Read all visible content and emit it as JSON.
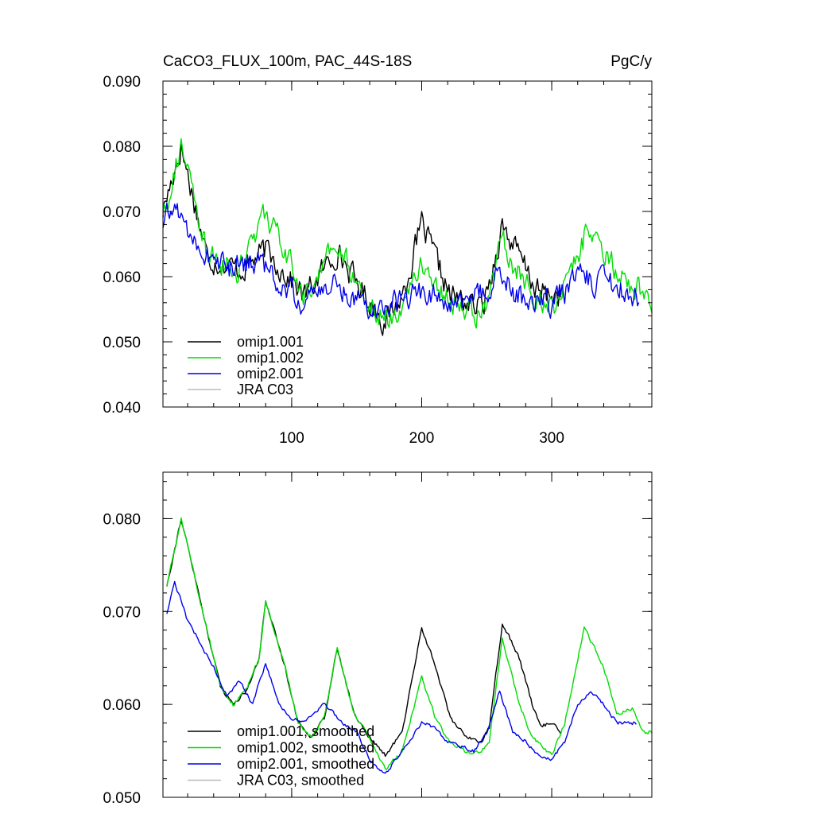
{
  "chart_data": [
    {
      "type": "line",
      "title": "CaCO3_FLUX_100m, PAC_44S-18S",
      "units": "PgC/y",
      "xlabel": "",
      "ylabel": "",
      "xlim": [
        1,
        377
      ],
      "ylim": [
        0.04,
        0.09
      ],
      "xticks": [
        100,
        200,
        300
      ],
      "xtick_labels": [
        "100",
        "200",
        "300"
      ],
      "yticks": [
        0.04,
        0.05,
        0.06,
        0.07,
        0.08,
        0.09
      ],
      "ytick_labels": [
        "0.040",
        "0.050",
        "0.060",
        "0.070",
        "0.080",
        "0.090"
      ],
      "legend_position": "bottom-left",
      "series": [
        {
          "name": "omip1.001",
          "color": "#000000",
          "x_start": 1,
          "x_end": 307,
          "anchors": [
            [
              1,
              0.07
            ],
            [
              15,
              0.08
            ],
            [
              35,
              0.063
            ],
            [
              60,
              0.061
            ],
            [
              80,
              0.064
            ],
            [
              110,
              0.057
            ],
            [
              135,
              0.064
            ],
            [
              150,
              0.059
            ],
            [
              172,
              0.053
            ],
            [
              185,
              0.057
            ],
            [
              200,
              0.068
            ],
            [
              212,
              0.062
            ],
            [
              222,
              0.057
            ],
            [
              235,
              0.056
            ],
            [
              246,
              0.055
            ],
            [
              252,
              0.059
            ],
            [
              262,
              0.068
            ],
            [
              275,
              0.063
            ],
            [
              290,
              0.0575
            ],
            [
              307,
              0.057
            ]
          ]
        },
        {
          "name": "omip1.002",
          "color": "#00dd00",
          "x_start": 1,
          "x_end": 377,
          "anchors": [
            [
              1,
              0.07
            ],
            [
              15,
              0.08
            ],
            [
              35,
              0.063
            ],
            [
              60,
              0.061
            ],
            [
              80,
              0.07
            ],
            [
              110,
              0.057
            ],
            [
              135,
              0.065
            ],
            [
              150,
              0.059
            ],
            [
              172,
              0.053
            ],
            [
              185,
              0.056
            ],
            [
              200,
              0.062
            ],
            [
              212,
              0.059
            ],
            [
              222,
              0.056
            ],
            [
              235,
              0.055
            ],
            [
              246,
              0.054
            ],
            [
              252,
              0.057
            ],
            [
              262,
              0.066
            ],
            [
              275,
              0.06
            ],
            [
              290,
              0.056
            ],
            [
              305,
              0.056
            ],
            [
              325,
              0.066
            ],
            [
              345,
              0.062
            ],
            [
              360,
              0.059
            ],
            [
              377,
              0.057
            ]
          ]
        },
        {
          "name": "omip2.001",
          "color": "#0000ee",
          "x_start": 1,
          "x_end": 367,
          "anchors": [
            [
              1,
              0.068
            ],
            [
              10,
              0.071
            ],
            [
              30,
              0.064
            ],
            [
              55,
              0.061
            ],
            [
              70,
              0.063
            ],
            [
              90,
              0.059
            ],
            [
              110,
              0.056
            ],
            [
              130,
              0.059
            ],
            [
              150,
              0.057
            ],
            [
              165,
              0.055
            ],
            [
              180,
              0.056
            ],
            [
              200,
              0.058
            ],
            [
              220,
              0.056
            ],
            [
              240,
              0.056
            ],
            [
              260,
              0.06
            ],
            [
              275,
              0.057
            ],
            [
              290,
              0.056
            ],
            [
              300,
              0.0555
            ],
            [
              320,
              0.06
            ],
            [
              340,
              0.059
            ],
            [
              350,
              0.058
            ],
            [
              367,
              0.057
            ]
          ]
        },
        {
          "name": "JRA C03",
          "color": "#bbbbbb",
          "anchors": []
        }
      ]
    },
    {
      "type": "line",
      "title": "",
      "xlabel": "",
      "ylabel": "",
      "xlim": [
        1,
        377
      ],
      "ylim": [
        0.05,
        0.085
      ],
      "xticks": [
        100,
        200,
        300
      ],
      "yticks": [
        0.05,
        0.06,
        0.07,
        0.08
      ],
      "ytick_labels": [
        "0.050",
        "0.060",
        "0.070",
        "0.080"
      ],
      "legend_position": "bottom-left",
      "series": [
        {
          "name": "omip1.001, smoothed",
          "color": "#000000",
          "x_start": 4,
          "x_end": 307,
          "anchors": [
            [
              4,
              0.0728
            ],
            [
              15,
              0.08
            ],
            [
              25,
              0.074
            ],
            [
              35,
              0.068
            ],
            [
              45,
              0.062
            ],
            [
              55,
              0.06
            ],
            [
              65,
              0.0615
            ],
            [
              75,
              0.065
            ],
            [
              80,
              0.0712
            ],
            [
              95,
              0.064
            ],
            [
              105,
              0.058
            ],
            [
              115,
              0.0565
            ],
            [
              125,
              0.0585
            ],
            [
              135,
              0.066
            ],
            [
              148,
              0.059
            ],
            [
              160,
              0.0565
            ],
            [
              172,
              0.0545
            ],
            [
              185,
              0.057
            ],
            [
              200,
              0.0683
            ],
            [
              212,
              0.0635
            ],
            [
              222,
              0.0585
            ],
            [
              235,
              0.0565
            ],
            [
              246,
              0.056
            ],
            [
              252,
              0.0575
            ],
            [
              262,
              0.0688
            ],
            [
              275,
              0.065
            ],
            [
              285,
              0.06
            ],
            [
              292,
              0.0577
            ],
            [
              300,
              0.058
            ],
            [
              307,
              0.057
            ]
          ]
        },
        {
          "name": "omip1.002, smoothed",
          "color": "#00dd00",
          "x_start": 4,
          "x_end": 377,
          "anchors": [
            [
              4,
              0.0728
            ],
            [
              15,
              0.08
            ],
            [
              25,
              0.074
            ],
            [
              35,
              0.068
            ],
            [
              45,
              0.062
            ],
            [
              55,
              0.06
            ],
            [
              65,
              0.0615
            ],
            [
              75,
              0.065
            ],
            [
              80,
              0.0712
            ],
            [
              95,
              0.064
            ],
            [
              105,
              0.058
            ],
            [
              115,
              0.0565
            ],
            [
              125,
              0.0585
            ],
            [
              135,
              0.066
            ],
            [
              148,
              0.059
            ],
            [
              160,
              0.0565
            ],
            [
              172,
              0.053
            ],
            [
              185,
              0.055
            ],
            [
              200,
              0.063
            ],
            [
              212,
              0.058
            ],
            [
              222,
              0.056
            ],
            [
              235,
              0.0548
            ],
            [
              246,
              0.055
            ],
            [
              252,
              0.056
            ],
            [
              262,
              0.0672
            ],
            [
              275,
              0.06
            ],
            [
              285,
              0.0565
            ],
            [
              300,
              0.0545
            ],
            [
              310,
              0.058
            ],
            [
              325,
              0.0683
            ],
            [
              340,
              0.064
            ],
            [
              350,
              0.059
            ],
            [
              362,
              0.0597
            ],
            [
              370,
              0.057
            ],
            [
              377,
              0.0571
            ]
          ]
        },
        {
          "name": "omip2.001, smoothed",
          "color": "#0000ee",
          "x_start": 4,
          "x_end": 365,
          "anchors": [
            [
              4,
              0.0698
            ],
            [
              10,
              0.0732
            ],
            [
              20,
              0.069
            ],
            [
              30,
              0.0665
            ],
            [
              40,
              0.064
            ],
            [
              50,
              0.061
            ],
            [
              60,
              0.0625
            ],
            [
              70,
              0.06
            ],
            [
              80,
              0.0645
            ],
            [
              90,
              0.06
            ],
            [
              100,
              0.0585
            ],
            [
              110,
              0.058
            ],
            [
              125,
              0.06
            ],
            [
              140,
              0.058
            ],
            [
              150,
              0.057
            ],
            [
              160,
              0.054
            ],
            [
              172,
              0.0525
            ],
            [
              180,
              0.054
            ],
            [
              190,
              0.056
            ],
            [
              200,
              0.058
            ],
            [
              210,
              0.0575
            ],
            [
              220,
              0.056
            ],
            [
              230,
              0.0555
            ],
            [
              240,
              0.055
            ],
            [
              250,
              0.057
            ],
            [
              260,
              0.0614
            ],
            [
              270,
              0.057
            ],
            [
              280,
              0.056
            ],
            [
              290,
              0.0545
            ],
            [
              300,
              0.054
            ],
            [
              310,
              0.056
            ],
            [
              320,
              0.06
            ],
            [
              330,
              0.0615
            ],
            [
              340,
              0.06
            ],
            [
              350,
              0.058
            ],
            [
              365,
              0.058
            ]
          ]
        },
        {
          "name": "JRA C03, smoothed",
          "color": "#bbbbbb",
          "anchors": []
        }
      ]
    }
  ]
}
